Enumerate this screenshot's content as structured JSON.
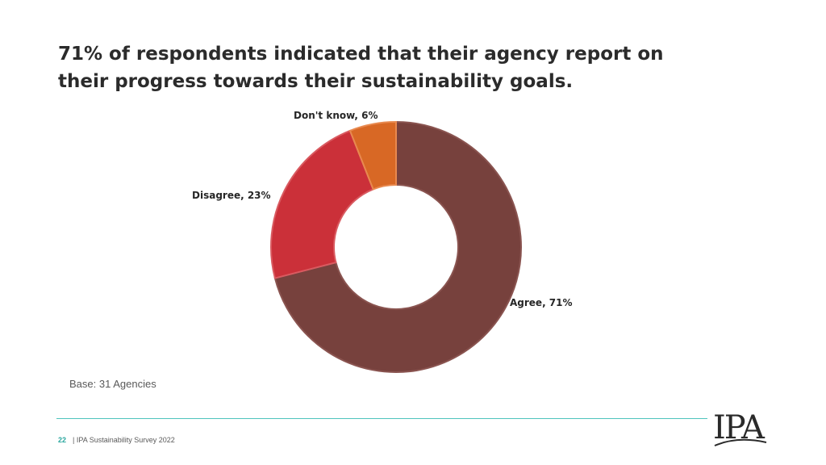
{
  "title": "71% of respondents indicated that their agency report on their progress towards their sustainability goals.",
  "base_note": "Base: 31 Agencies",
  "footer": {
    "page_number": "22",
    "text": "| IPA Sustainability Survey 2022"
  },
  "logo_text": "IPA",
  "colors": {
    "agree": "#77413D",
    "disagree": "#CB3039",
    "dont_know": "#D86825",
    "accent": "#4FC4BD"
  },
  "chart_data": {
    "type": "pie",
    "variant": "donut",
    "title": "",
    "slices": [
      {
        "name": "Agree",
        "value": 71,
        "label": "Agree, 71%"
      },
      {
        "name": "Disagree",
        "value": 23,
        "label": "Disagree, 23%"
      },
      {
        "name": "Don't know",
        "value": 6,
        "label": "Don't know, 6%"
      }
    ],
    "legend": "none"
  }
}
